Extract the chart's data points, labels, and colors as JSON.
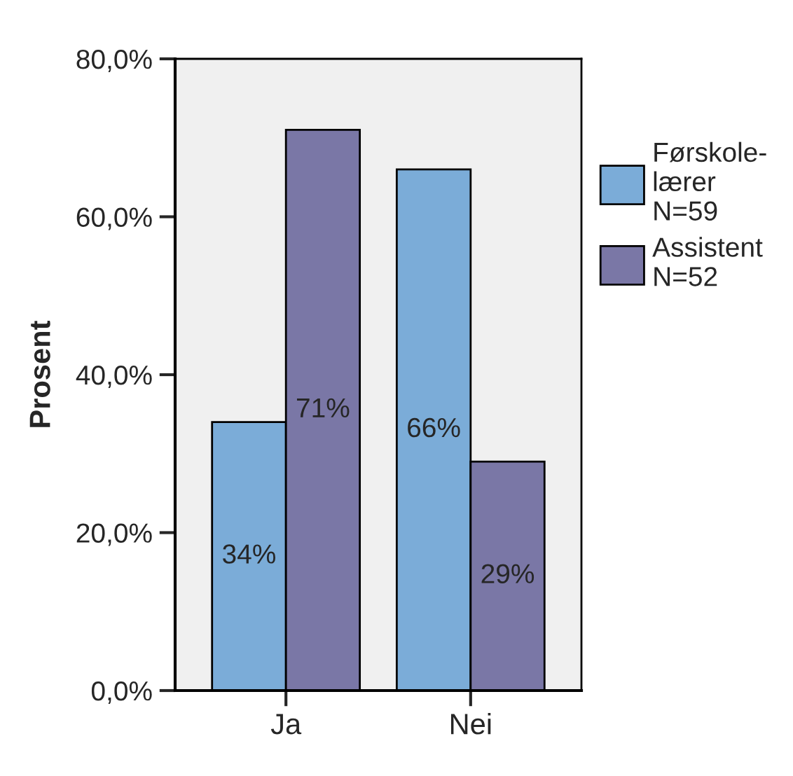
{
  "chart_data": {
    "type": "bar",
    "ylabel": "Prosent",
    "categories": [
      "Ja",
      "Nei"
    ],
    "series": [
      {
        "name": "Førskole-\nlærer\nN=59",
        "color": "#7bacd8",
        "values": [
          34,
          66
        ],
        "value_labels": [
          "34%",
          "66%"
        ]
      },
      {
        "name": "Assistent\nN=52",
        "color": "#7a77a6",
        "values": [
          71,
          29
        ],
        "value_labels": [
          "71%",
          "29%"
        ]
      }
    ],
    "ylim": [
      0,
      80
    ],
    "yticks": [
      {
        "value": 0,
        "label": "0,0%"
      },
      {
        "value": 20,
        "label": "20,0%"
      },
      {
        "value": 40,
        "label": "40,0%"
      },
      {
        "value": 60,
        "label": "60,0%"
      },
      {
        "value": 80,
        "label": "80,0%"
      }
    ],
    "grid": false,
    "legend": "right"
  }
}
